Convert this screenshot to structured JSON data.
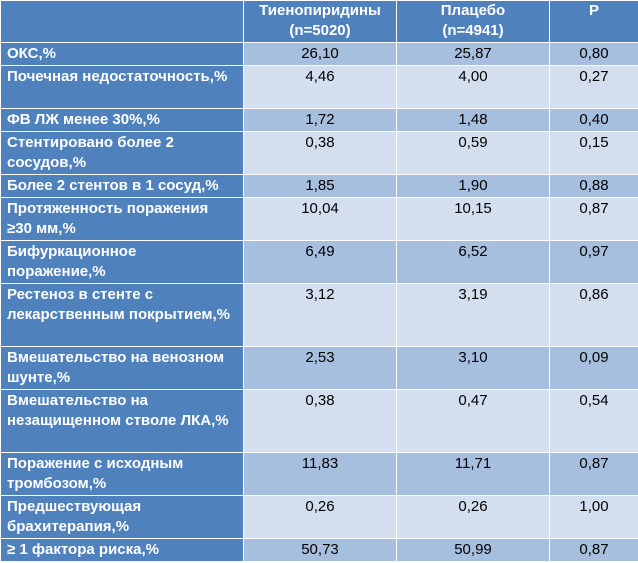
{
  "table": {
    "headers": [
      "",
      "Тиенопиридины\n(n=5020)",
      "Плацебо\n(n=4941)",
      "P"
    ],
    "rows": [
      {
        "label": "ОКС,%",
        "values": [
          "26,10",
          "25,87",
          "0,80"
        ],
        "lines": 1
      },
      {
        "label": "Почечная недостаточность,%",
        "values": [
          "4,46",
          "4,00",
          "0,27"
        ],
        "lines": 2
      },
      {
        "label": "ФВ ЛЖ менее 30%,%",
        "values": [
          "1,72",
          "1,48",
          "0,40"
        ],
        "lines": 1
      },
      {
        "label": "Стентировано более 2 сосудов,%",
        "values": [
          "0,38",
          "0,59",
          "0,15"
        ],
        "lines": 2
      },
      {
        "label": "Более 2 стентов в 1 сосуд,%",
        "values": [
          "1,85",
          "1,90",
          "0,88"
        ],
        "lines": 1
      },
      {
        "label": "Протяженность поражения ≥30 мм,%",
        "values": [
          "10,04",
          "10,15",
          "0,87"
        ],
        "lines": 2
      },
      {
        "label": "Бифуркационное поражение,%",
        "values": [
          "6,49",
          "6,52",
          "0,97"
        ],
        "lines": 2
      },
      {
        "label": "Рестеноз в стенте с лекарственным покрытием,%",
        "values": [
          "3,12",
          "3,19",
          "0,86"
        ],
        "lines": 3
      },
      {
        "label": "Вмешательство на венозном шунте,%",
        "values": [
          "2,53",
          "3,10",
          "0,09"
        ],
        "lines": 2
      },
      {
        "label": "Вмешательство на незащищенном стволе ЛКА,%",
        "values": [
          "0,38",
          "0,47",
          "0,54"
        ],
        "lines": 3
      },
      {
        "label": "Поражение с исходным тромбозом,%",
        "values": [
          "11,83",
          "11,71",
          "0,87"
        ],
        "lines": 2
      },
      {
        "label": "Предшествующая брахитерапия,%",
        "values": [
          "0,26",
          "0,26",
          "1,00"
        ],
        "lines": 2
      },
      {
        "label": "≥ 1 фактора риска,%",
        "values": [
          "50,73",
          "50,99",
          "0,87"
        ],
        "lines": 1
      }
    ]
  }
}
